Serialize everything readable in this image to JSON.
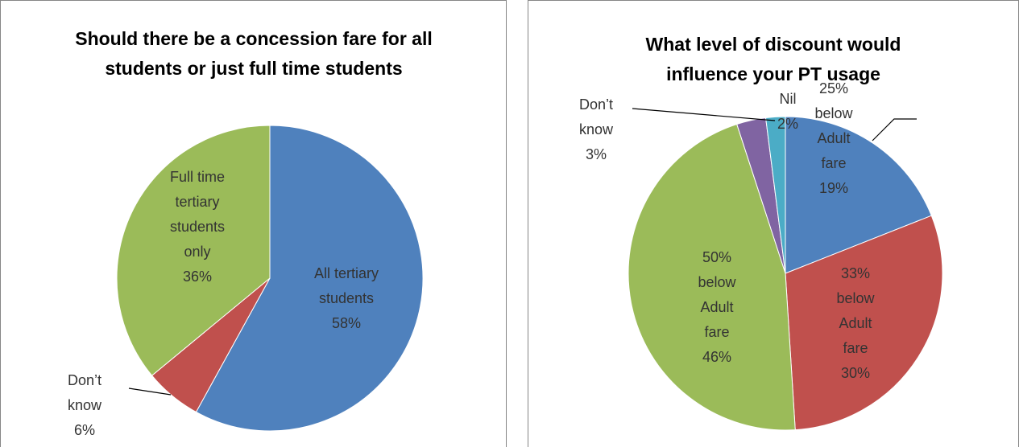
{
  "chart_data": [
    {
      "type": "pie",
      "title": "Should there be a concession fare for all students or just full time students",
      "categories": [
        "All tertiary students",
        "Don’t know",
        "Full time tertiary students only"
      ],
      "values": [
        58,
        6,
        36
      ],
      "value_labels": [
        "58%",
        "6%",
        "36%"
      ],
      "colors": [
        "#4f81bd",
        "#c0504d",
        "#9bbb59"
      ]
    },
    {
      "type": "pie",
      "title": "What level of discount would influence your PT usage",
      "categories": [
        "25% below Adult fare",
        "33% below Adult fare",
        "50% below Adult fare",
        "Don’t know",
        "Nil"
      ],
      "values": [
        19,
        30,
        46,
        3,
        2
      ],
      "value_labels": [
        "19%",
        "30%",
        "46%",
        "3%",
        "2%"
      ],
      "colors": [
        "#4f81bd",
        "#c0504d",
        "#9bbb59",
        "#8064a2",
        "#4bacc6"
      ]
    }
  ]
}
